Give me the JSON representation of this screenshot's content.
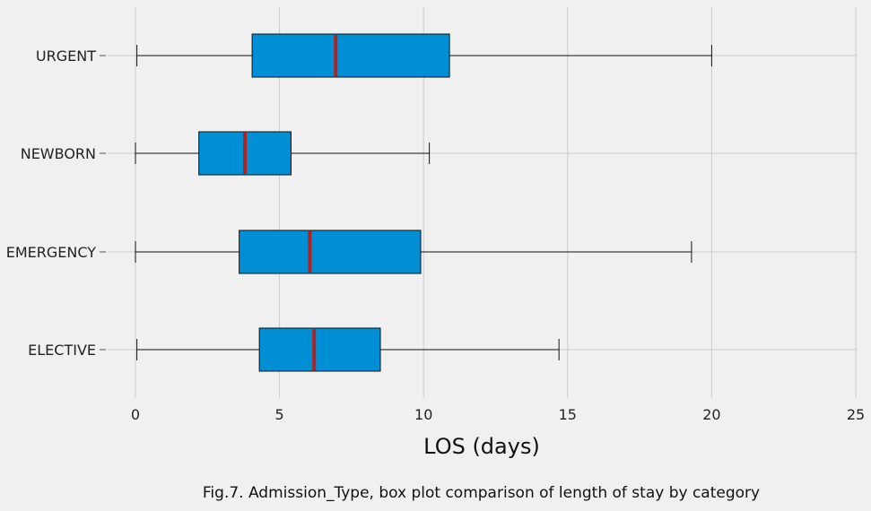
{
  "chart_data": {
    "type": "box",
    "orientation": "horizontal",
    "categories": [
      "ELECTIVE",
      "EMERGENCY",
      "NEWBORN",
      "URGENT"
    ],
    "boxes": [
      {
        "category": "ELECTIVE",
        "whisker_low": 0.05,
        "q1": 4.3,
        "median": 6.2,
        "q3": 8.5,
        "whisker_high": 14.7
      },
      {
        "category": "EMERGENCY",
        "whisker_low": 0.0,
        "q1": 3.6,
        "median": 6.05,
        "q3": 9.9,
        "whisker_high": 19.3
      },
      {
        "category": "NEWBORN",
        "whisker_low": 0.0,
        "q1": 2.2,
        "median": 3.8,
        "q3": 5.4,
        "whisker_high": 10.2
      },
      {
        "category": "URGENT",
        "whisker_low": 0.05,
        "q1": 4.05,
        "median": 6.95,
        "q3": 10.9,
        "whisker_high": 20.0
      }
    ],
    "xlabel": "LOS (days)",
    "xlim": [
      0,
      25
    ],
    "xticks": [
      "0",
      "5",
      "10",
      "15",
      "20",
      "25"
    ],
    "grid": true,
    "colors": {
      "box": "#008fd5",
      "median": "#b22222",
      "grid": "#cbcbcb",
      "background": "#f0f0f0"
    }
  },
  "caption": "Fig.7. Admission_Type, box plot comparison of length of stay by category"
}
